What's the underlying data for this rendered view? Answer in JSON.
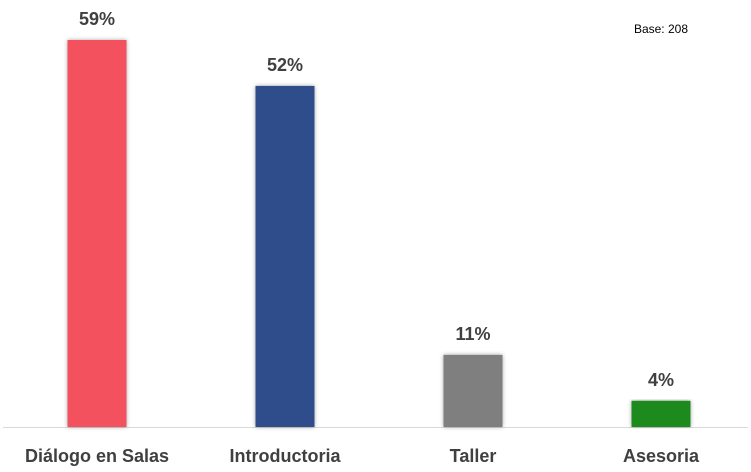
{
  "note": "Base: 208",
  "chart_data": {
    "type": "bar",
    "categories": [
      "Diálogo en Salas",
      "Introductoria",
      "Taller",
      "Asesoria"
    ],
    "values": [
      59,
      52,
      11,
      4
    ],
    "value_labels": [
      "59%",
      "52%",
      "11%",
      "4%"
    ],
    "colors": [
      "#F4515E",
      "#2E4D8A",
      "#7F7F7F",
      "#1E8A1E"
    ],
    "title": "",
    "xlabel": "",
    "ylabel": "",
    "ylim": [
      0,
      59
    ],
    "grid": false,
    "legend": "none"
  }
}
